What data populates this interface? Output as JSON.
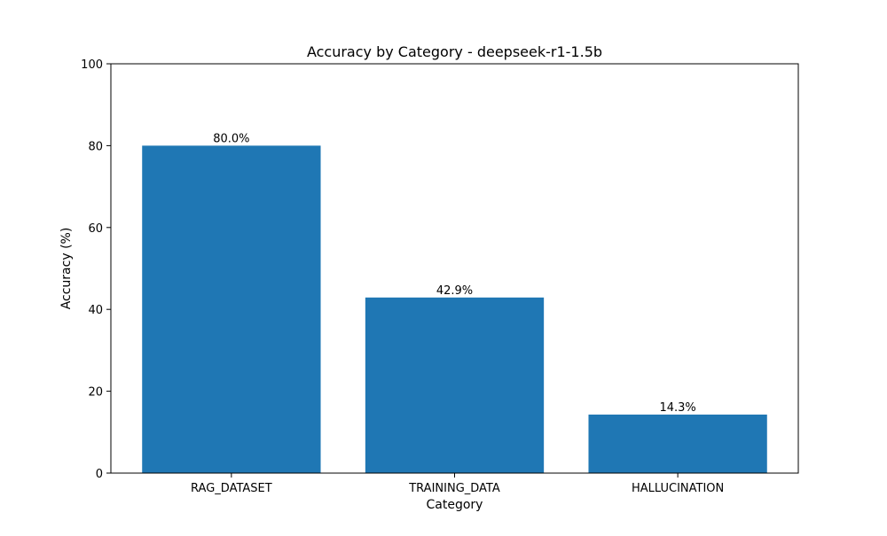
{
  "chart_data": {
    "type": "bar",
    "title": "Accuracy by Category - deepseek-r1-1.5b",
    "xlabel": "Category",
    "ylabel": "Accuracy (%)",
    "categories": [
      "RAG_DATASET",
      "TRAINING_DATA",
      "HALLUCINATION"
    ],
    "values": [
      80.0,
      42.9,
      14.3
    ],
    "data_labels": [
      "80.0%",
      "42.9%",
      "14.3%"
    ],
    "ylim": [
      0,
      100
    ],
    "yticks": [
      0,
      20,
      40,
      60,
      80,
      100
    ],
    "ytick_labels": [
      "0",
      "20",
      "40",
      "60",
      "80",
      "100"
    ],
    "grid": false,
    "bar_color": "#1f77b4"
  }
}
